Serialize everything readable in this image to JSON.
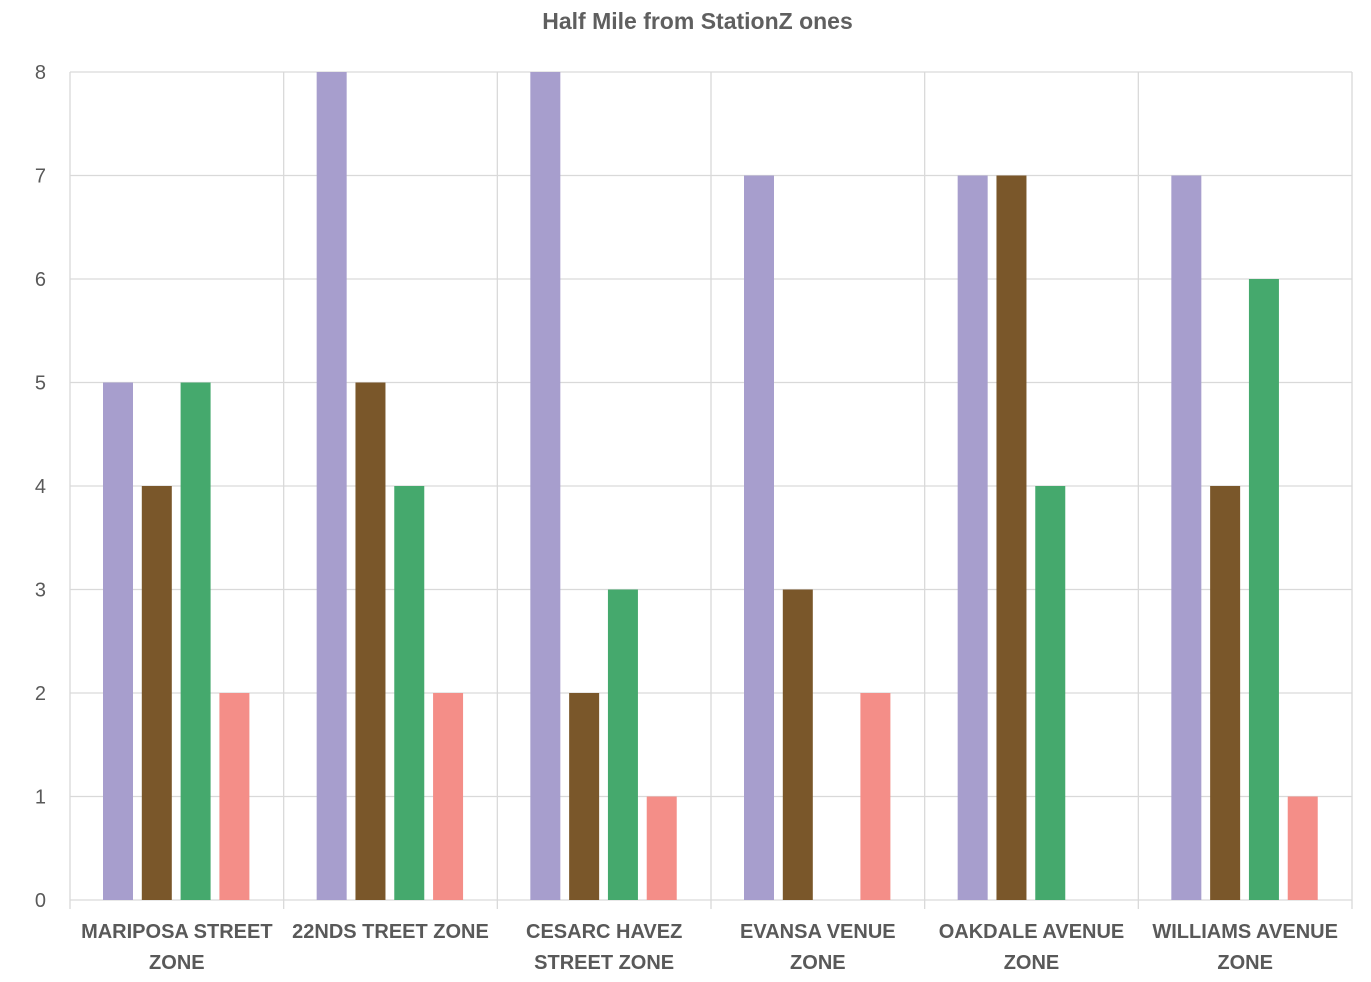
{
  "chart_data": {
    "type": "bar",
    "title": "Half Mile from StationZ ones",
    "xlabel": "",
    "ylabel": "",
    "ylim": [
      0,
      8
    ],
    "yticks": [
      "0",
      "1",
      "2",
      "3",
      "4",
      "5",
      "6",
      "7",
      "8"
    ],
    "categories": [
      "MARIPOSA STREET ZONE",
      "22NDS TREET ZONE",
      "CESARC HAVEZ STREET ZONE",
      "EVANSA VENUE ZONE",
      "OAKDALE AVENUE ZONE",
      "WILLIAMS AVENUE ZONE"
    ],
    "series": [
      {
        "color": "#a79ecd",
        "values": [
          5,
          8,
          8,
          7,
          7,
          7
        ]
      },
      {
        "color": "#7a572a",
        "values": [
          4,
          5,
          2,
          3,
          7,
          4
        ]
      },
      {
        "color": "#45a96d",
        "values": [
          5,
          4,
          3,
          0,
          4,
          6
        ]
      },
      {
        "color": "#f48e88",
        "values": [
          2,
          2,
          1,
          2,
          0,
          1
        ]
      }
    ],
    "grid": true,
    "legend": "none"
  }
}
